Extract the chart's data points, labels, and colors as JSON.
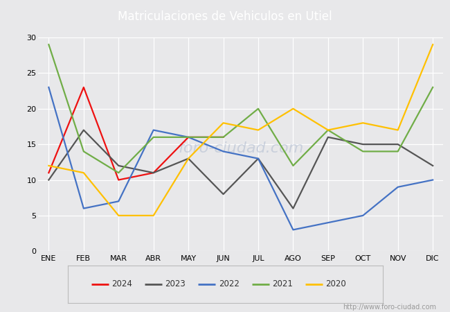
{
  "title": "Matriculaciones de Vehiculos en Utiel",
  "title_color": "#ffffff",
  "title_bg_color": "#4472c4",
  "months": [
    "ENE",
    "FEB",
    "MAR",
    "ABR",
    "MAY",
    "JUN",
    "JUL",
    "AGO",
    "SEP",
    "OCT",
    "NOV",
    "DIC"
  ],
  "series": {
    "2024": {
      "color": "#ee1111",
      "values": [
        11,
        23,
        10,
        11,
        16,
        16,
        null,
        null,
        null,
        null,
        null,
        null
      ]
    },
    "2023": {
      "color": "#555555",
      "values": [
        10,
        17,
        12,
        11,
        13,
        8,
        13,
        6,
        16,
        15,
        15,
        12
      ]
    },
    "2022": {
      "color": "#4472c4",
      "values": [
        23,
        6,
        7,
        17,
        16,
        14,
        13,
        3,
        4,
        5,
        9,
        10
      ]
    },
    "2021": {
      "color": "#70ad47",
      "values": [
        29,
        14,
        11,
        16,
        16,
        16,
        20,
        12,
        17,
        14,
        14,
        23
      ]
    },
    "2020": {
      "color": "#ffc000",
      "values": [
        12,
        11,
        5,
        5,
        13,
        18,
        17,
        20,
        17,
        18,
        17,
        29
      ]
    }
  },
  "ylim": [
    0,
    30
  ],
  "yticks": [
    0,
    5,
    10,
    15,
    20,
    25,
    30
  ],
  "plot_bg_color": "#e8e8ea",
  "grid_color": "#ffffff",
  "fig_bg_color": "#e8e8ea",
  "url": "http://www.foro-ciudad.com",
  "legend_order": [
    "2024",
    "2023",
    "2022",
    "2021",
    "2020"
  ],
  "line_width": 1.6
}
